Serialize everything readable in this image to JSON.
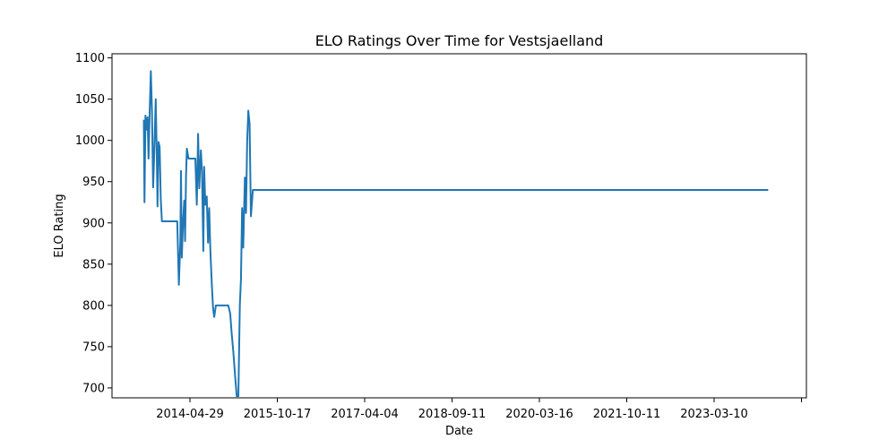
{
  "chart_data": {
    "type": "line",
    "title": "ELO Ratings Over Time for Vestsjaelland",
    "xlabel": "Date",
    "ylabel": "ELO Rating",
    "grid": false,
    "legend": "none",
    "x_ticks": [
      "2014-04-29",
      "2015-10-17",
      "2017-04-04",
      "2018-09-11",
      "2020-03-16",
      "2021-10-11",
      "2023-03-10",
      ""
    ],
    "y_ticks": [
      700,
      750,
      800,
      850,
      900,
      950,
      1000,
      1050,
      1100
    ],
    "ylim": [
      688,
      1105
    ],
    "series": [
      {
        "color": "#1f77b4",
        "points": [
          [
            "2013-07-20",
            1025
          ],
          [
            "2013-07-24",
            925
          ],
          [
            "2013-07-30",
            1030
          ],
          [
            "2013-08-05",
            1013
          ],
          [
            "2013-08-12",
            1028
          ],
          [
            "2013-08-18",
            978
          ],
          [
            "2013-08-25",
            1035
          ],
          [
            "2013-09-01",
            1084
          ],
          [
            "2013-09-08",
            1035
          ],
          [
            "2013-09-15",
            943
          ],
          [
            "2013-09-20",
            973
          ],
          [
            "2013-10-01",
            1050
          ],
          [
            "2013-10-08",
            975
          ],
          [
            "2013-10-12",
            920
          ],
          [
            "2013-10-18",
            998
          ],
          [
            "2013-10-25",
            992
          ],
          [
            "2013-11-01",
            928
          ],
          [
            "2013-11-08",
            902
          ],
          [
            "2013-12-01",
            902
          ],
          [
            "2014-01-15",
            902
          ],
          [
            "2014-02-10",
            902
          ],
          [
            "2014-02-20",
            825
          ],
          [
            "2014-03-01",
            877
          ],
          [
            "2014-03-05",
            963
          ],
          [
            "2014-03-10",
            858
          ],
          [
            "2014-03-18",
            902
          ],
          [
            "2014-03-25",
            927
          ],
          [
            "2014-03-30",
            878
          ],
          [
            "2014-04-05",
            957
          ],
          [
            "2014-04-10",
            990
          ],
          [
            "2014-04-20",
            978
          ],
          [
            "2014-05-01",
            978
          ],
          [
            "2014-05-20",
            978
          ],
          [
            "2014-06-01",
            978
          ],
          [
            "2014-06-10",
            922
          ],
          [
            "2014-06-18",
            1008
          ],
          [
            "2014-06-25",
            942
          ],
          [
            "2014-07-05",
            988
          ],
          [
            "2014-07-12",
            962
          ],
          [
            "2014-07-20",
            866
          ],
          [
            "2014-07-25",
            968
          ],
          [
            "2014-08-01",
            922
          ],
          [
            "2014-08-10",
            932
          ],
          [
            "2014-08-18",
            876
          ],
          [
            "2014-08-25",
            918
          ],
          [
            "2014-09-01",
            868
          ],
          [
            "2014-09-10",
            826
          ],
          [
            "2014-09-18",
            796
          ],
          [
            "2014-09-25",
            786
          ],
          [
            "2014-10-05",
            800
          ],
          [
            "2014-11-01",
            800
          ],
          [
            "2014-12-01",
            800
          ],
          [
            "2014-12-20",
            800
          ],
          [
            "2015-01-01",
            790
          ],
          [
            "2015-01-10",
            766
          ],
          [
            "2015-01-20",
            744
          ],
          [
            "2015-02-01",
            712
          ],
          [
            "2015-02-10",
            690
          ],
          [
            "2015-02-20",
            690
          ],
          [
            "2015-03-01",
            800
          ],
          [
            "2015-03-08",
            832
          ],
          [
            "2015-03-15",
            918
          ],
          [
            "2015-03-22",
            870
          ],
          [
            "2015-04-01",
            955
          ],
          [
            "2015-04-08",
            912
          ],
          [
            "2015-04-15",
            998
          ],
          [
            "2015-04-22",
            1036
          ],
          [
            "2015-04-30",
            1020
          ],
          [
            "2015-05-08",
            908
          ],
          [
            "2015-05-20",
            940
          ],
          [
            "2016-06-01",
            940
          ],
          [
            "2018-01-01",
            940
          ],
          [
            "2020-01-01",
            940
          ],
          [
            "2022-01-01",
            940
          ],
          [
            "2024-01-15",
            940
          ]
        ]
      }
    ]
  }
}
